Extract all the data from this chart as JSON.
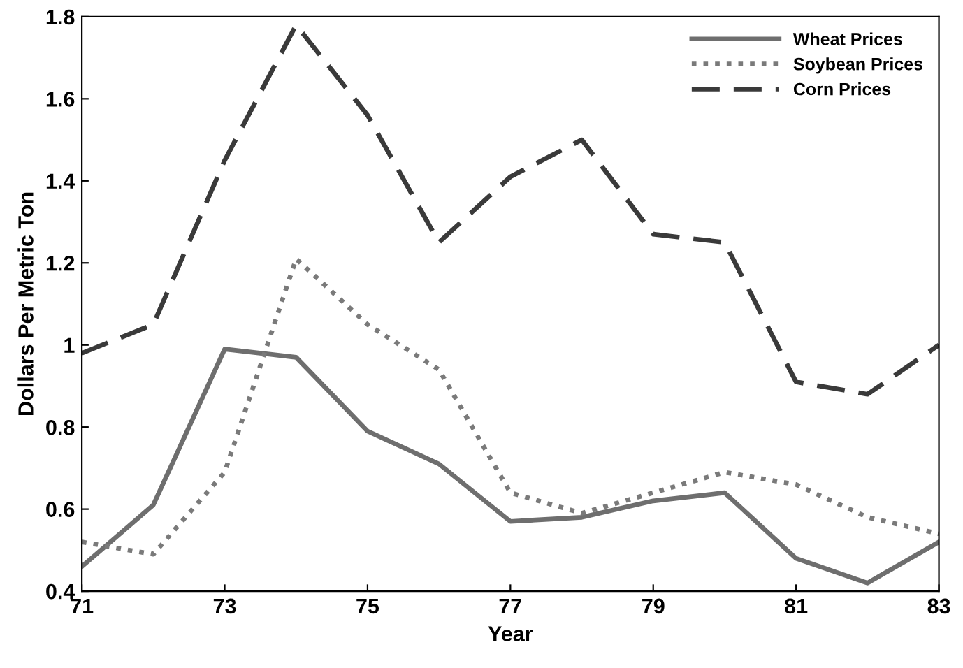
{
  "chart_data": {
    "type": "line",
    "xlabel": "Year",
    "ylabel": "Dollars Per Metric Ton",
    "x": [
      71,
      72,
      73,
      74,
      75,
      76,
      77,
      78,
      79,
      80,
      81,
      82,
      83
    ],
    "series": [
      {
        "name": "Wheat Prices",
        "color": "#6e6e6e",
        "line_style": "solid",
        "values": [
          0.46,
          0.61,
          0.99,
          0.97,
          0.79,
          0.71,
          0.57,
          0.58,
          0.62,
          0.64,
          0.48,
          0.42,
          0.52
        ]
      },
      {
        "name": "Soybean Prices",
        "color": "#7a7a7a",
        "line_style": "dotted",
        "values": [
          0.52,
          0.49,
          0.69,
          1.21,
          1.05,
          0.94,
          0.64,
          0.59,
          0.64,
          0.69,
          0.66,
          0.58,
          0.54
        ]
      },
      {
        "name": "Corn Prices",
        "color": "#3a3a3a",
        "line_style": "dashed",
        "values": [
          0.98,
          1.05,
          1.45,
          1.78,
          1.56,
          1.25,
          1.41,
          1.5,
          1.27,
          1.25,
          0.91,
          0.88,
          1.0
        ]
      }
    ],
    "xlim": [
      71,
      83
    ],
    "xticks": [
      71,
      73,
      75,
      77,
      79,
      81,
      83
    ],
    "ylim": [
      0.4,
      1.8
    ],
    "yticks": [
      0.4,
      0.6,
      0.8,
      1,
      1.2,
      1.4,
      1.6,
      1.8
    ],
    "grid": false,
    "legend": "top right",
    "marker": "none"
  }
}
